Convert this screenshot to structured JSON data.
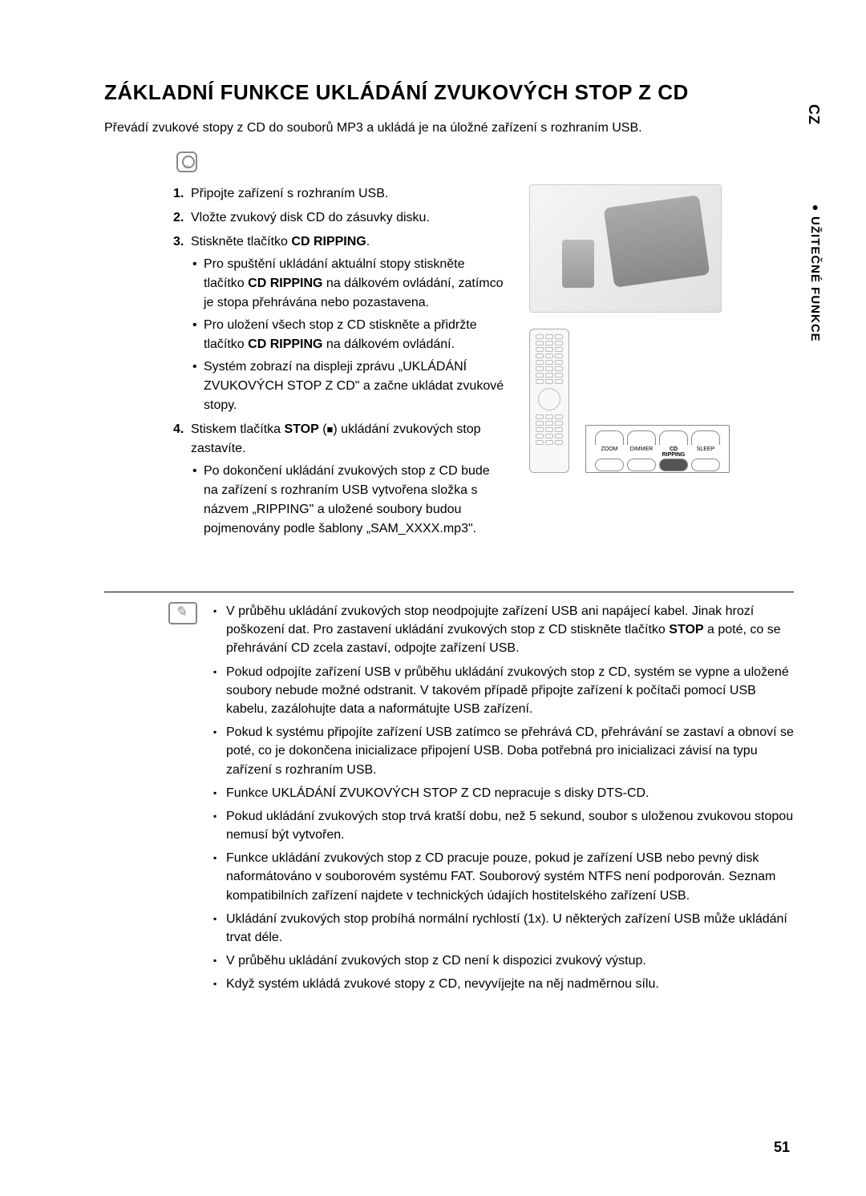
{
  "title": "ZÁKLADNÍ FUNKCE UKLÁDÁNÍ ZVUKOVÝCH STOP Z CD",
  "intro": "Převádí zvukové stopy z CD do souborů MP3 a ukládá je na úložné zařízení s rozhraním USB.",
  "steps": {
    "s1": "Připojte zařízení s rozhraním USB.",
    "s2": "Vložte zvukový disk CD do zásuvky disku.",
    "s3_prefix": "Stiskněte tlačítko ",
    "s3_bold": "CD RIPPING",
    "s3_suffix": ".",
    "s3_sub1_a": "Pro spuštění ukládání aktuální stopy stiskněte tlačítko ",
    "s3_sub1_bold": "CD RIPPING",
    "s3_sub1_b": " na dálkovém ovládání, zatímco je stopa přehrávána nebo pozastavena.",
    "s3_sub2_a": "Pro uložení všech stop z CD stiskněte a přidržte tlačítko ",
    "s3_sub2_bold": "CD RIPPING",
    "s3_sub2_b": " na dálkovém ovládání.",
    "s3_sub3": "Systém zobrazí na displeji zprávu „UKLÁDÁNÍ ZVUKOVÝCH STOP Z CD\" a začne ukládat zvukové stopy.",
    "s4_prefix": "Stiskem tlačítka ",
    "s4_bold": "STOP",
    "s4_middle": " (",
    "s4_symbol": "■",
    "s4_suffix": ") ukládání zvukových stop zastavíte.",
    "s4_sub1": "Po dokončení ukládání zvukových stop z CD bude na zařízení s rozhraním USB vytvořena složka s názvem „RIPPING\" a uložené soubory budou pojmenovány podle šablony „SAM_XXXX.mp3\"."
  },
  "notes": {
    "n1_a": "V průběhu ukládání zvukových stop neodpojujte zařízení USB ani napájecí kabel. Jinak hrozí poškození dat. Pro zastavení ukládání zvukových stop z CD stiskněte tlačítko ",
    "n1_bold": "STOP",
    "n1_b": " a poté, co se přehrávání CD zcela zastaví, odpojte zařízení USB.",
    "n2": "Pokud odpojíte zařízení USB v průběhu ukládání zvukových stop z CD, systém se vypne a uložené soubory nebude možné odstranit. V takovém případě připojte zařízení k počítači pomocí USB kabelu, zazálohujte data a naformátujte USB zařízení.",
    "n3": "Pokud k systému připojíte zařízení USB zatímco se přehrává CD, přehrávání se zastaví a obnoví se poté, co je dokončena inicializace připojení USB. Doba potřebná pro inicializaci závisí na typu zařízení s rozhraním USB.",
    "n4": "Funkce UKLÁDÁNÍ ZVUKOVÝCH STOP Z CD nepracuje s disky DTS-CD.",
    "n5": "Pokud ukládání zvukových stop trvá kratší dobu, než 5 sekund, soubor s uloženou zvukovou stopou nemusí být vytvořen.",
    "n6": "Funkce ukládání zvukových stop z CD pracuje pouze, pokud je zařízení USB nebo pevný disk naformátováno v souborovém systému FAT. Souborový systém NTFS není podporován. Seznam kompatibilních zařízení najdete v technických údajích hostitelského zařízení USB.",
    "n7": "Ukládání zvukových stop probíhá normální rychlostí (1x). U některých zařízení USB může ukládání trvat déle.",
    "n8": "V průběhu ukládání zvukových stop z CD není k dispozici zvukový výstup.",
    "n9": "Když systém ukládá zvukové stopy z CD, nevyvíjejte na něj nadměrnou sílu."
  },
  "zoom_labels": {
    "l1": "ZOOM",
    "l2": "DIMMER",
    "l3": "CD RIPPING",
    "l4": "SLEEP"
  },
  "side": {
    "lang": "CZ",
    "section": "UŽITEČNÉ FUNKCE",
    "bullet": "●"
  },
  "page_number": "51"
}
